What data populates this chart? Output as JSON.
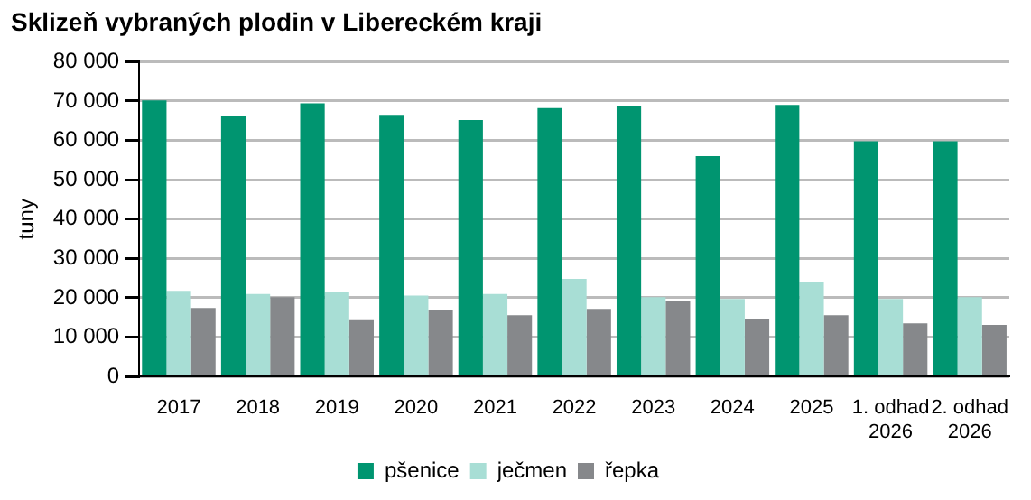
{
  "chart_data": {
    "type": "bar",
    "title": "Sklizeň vybraných plodin v Libereckém kraji",
    "ylabel": "tuny",
    "categories": [
      "2017",
      "2018",
      "2019",
      "2020",
      "2021",
      "2022",
      "2023",
      "2024",
      "2025",
      "1. odhad 2026",
      "2. odhad 2026"
    ],
    "series": [
      {
        "name": "pšenice",
        "color": "#009570",
        "values": [
          70200,
          66100,
          69400,
          66500,
          65200,
          68200,
          68600,
          56000,
          69000,
          59800,
          59800
        ]
      },
      {
        "name": "ječmen",
        "color": "#a8ded5",
        "values": [
          21800,
          21000,
          21400,
          20600,
          21000,
          24800,
          20200,
          19700,
          23900,
          19700,
          20200
        ]
      },
      {
        "name": "řepka",
        "color": "#86888b",
        "values": [
          17400,
          20200,
          14300,
          16800,
          15600,
          17200,
          19300,
          14700,
          15600,
          13500,
          13100
        ]
      }
    ],
    "ylim": [
      0,
      80000
    ],
    "yticks": [
      {
        "value": 0,
        "label": "0"
      },
      {
        "value": 10000,
        "label": "10 000"
      },
      {
        "value": 20000,
        "label": "20 000"
      },
      {
        "value": 30000,
        "label": "30 000"
      },
      {
        "value": 40000,
        "label": "40 000"
      },
      {
        "value": 50000,
        "label": "50 000"
      },
      {
        "value": 60000,
        "label": "60 000"
      },
      {
        "value": 70000,
        "label": "70 000"
      },
      {
        "value": 80000,
        "label": "80 000"
      }
    ],
    "grid": "y",
    "legend": "bottom"
  }
}
